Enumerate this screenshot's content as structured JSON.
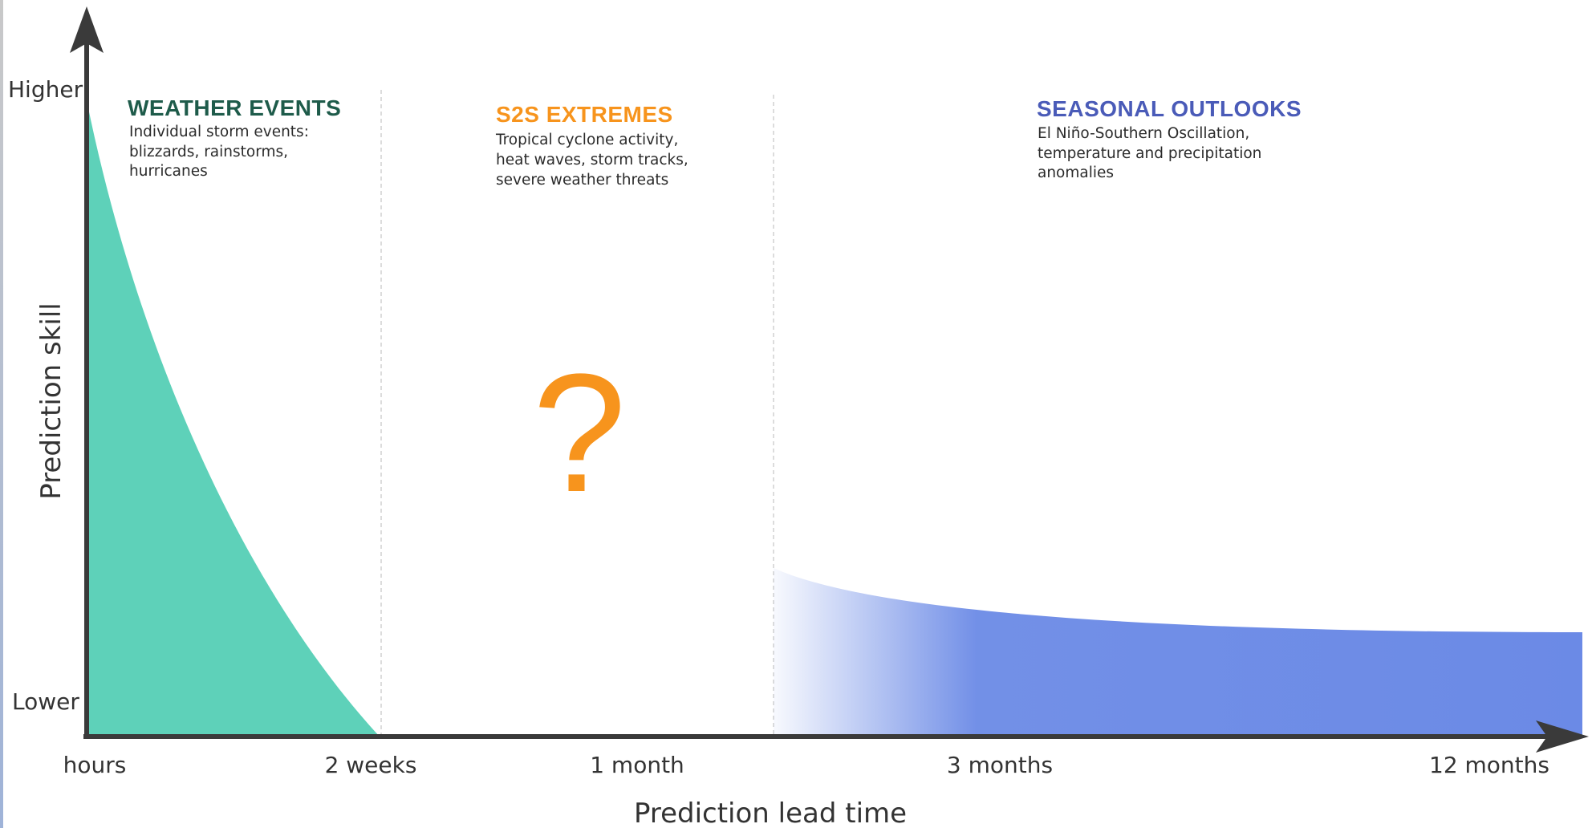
{
  "y_axis": {
    "title": "Prediction skill",
    "high_label": "Higher",
    "low_label": "Lower"
  },
  "x_axis": {
    "title": "Prediction lead time",
    "ticks": [
      "hours",
      "2 weeks",
      "1 month",
      "3 months",
      "12 months"
    ]
  },
  "sections": [
    {
      "title": "WEATHER EVENTS",
      "color": "#1e5b4a",
      "description": [
        "Individual storm events:",
        "blizzards, rainstorms,",
        "hurricanes"
      ]
    },
    {
      "title": "S2S EXTREMES",
      "color": "#f7941d",
      "description": [
        "Tropical cyclone activity,",
        "heat waves, storm tracks,",
        "severe weather threats"
      ]
    },
    {
      "title": "SEASONAL OUTLOOKS",
      "color": "#4a5bb8",
      "description": [
        "El Niño-Southern Oscillation,",
        "temperature and precipitation",
        "anomalies"
      ]
    }
  ],
  "question_mark": "?",
  "colors": {
    "weather_fill": "#5ed1b9",
    "seasonal_fill": "#6b8ae6",
    "question_mark": "#f7941d",
    "axis": "#3a3a3a",
    "divider": "#cfcfcf"
  }
}
